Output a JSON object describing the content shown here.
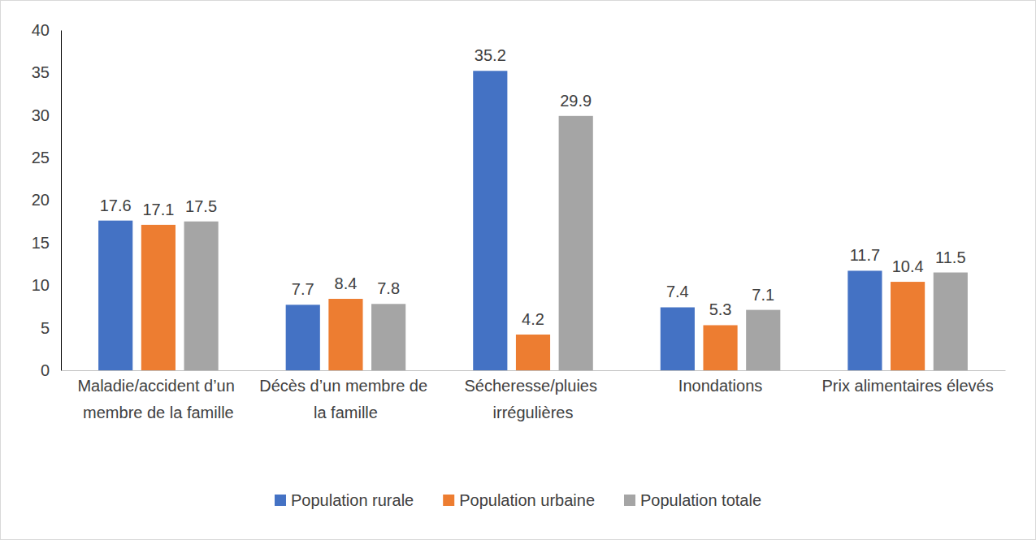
{
  "chart_data": {
    "type": "bar",
    "categories": [
      "Maladie/accident d’un membre de la famille",
      "Décès d’un membre de la famille",
      "Sécheresse/pluies irrégulières",
      "Inondations",
      "Prix alimentaires élevés"
    ],
    "series": [
      {
        "name": "Population rurale",
        "color": "#4472c4",
        "values": [
          17.6,
          7.7,
          35.2,
          7.4,
          11.7
        ]
      },
      {
        "name": "Population urbaine",
        "color": "#ed7d31",
        "values": [
          17.1,
          8.4,
          4.2,
          5.3,
          10.4
        ]
      },
      {
        "name": "Population totale",
        "color": "#a5a5a5",
        "values": [
          17.5,
          7.8,
          29.9,
          7.1,
          11.5
        ]
      }
    ],
    "ylim": [
      0,
      40
    ],
    "yticks": [
      0,
      5,
      10,
      15,
      20,
      25,
      30,
      35,
      40
    ],
    "grid": false,
    "data_labels": true,
    "legend": "bottom"
  }
}
